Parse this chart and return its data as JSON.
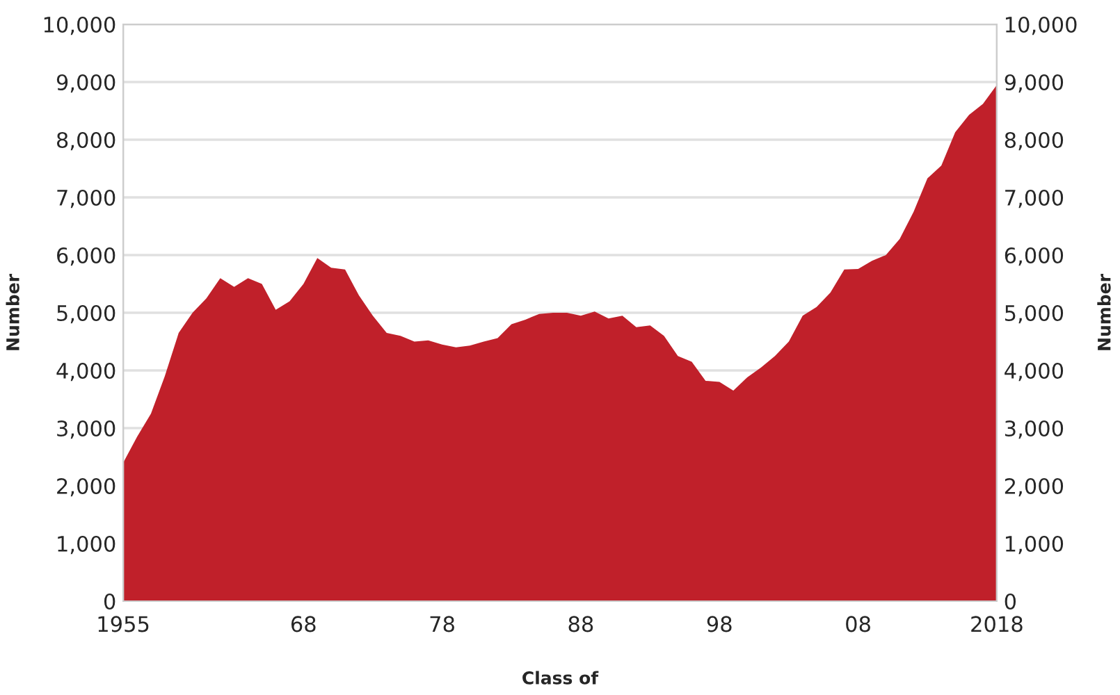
{
  "chart_data": {
    "type": "area",
    "xlabel": "Class of",
    "ylabel": "Number",
    "y2label": "Number",
    "x": [
      1955,
      1956,
      1957,
      1958,
      1959,
      1960,
      1961,
      1962,
      1963,
      1964,
      1965,
      1966,
      1967,
      1968,
      1969,
      1970,
      1971,
      1972,
      1973,
      1974,
      1975,
      1976,
      1977,
      1978,
      1979,
      1980,
      1981,
      1982,
      1983,
      1984,
      1985,
      1986,
      1987,
      1988,
      1989,
      1990,
      1991,
      1992,
      1993,
      1994,
      1995,
      1996,
      1997,
      1998,
      1999,
      2000,
      2001,
      2002,
      2003,
      2004,
      2005,
      2006,
      2007,
      2008,
      2009,
      2010,
      2011,
      2012,
      2013,
      2014,
      2015,
      2016,
      2017,
      2018
    ],
    "series": [
      {
        "color": "#c0202a",
        "values": [
          2400,
          2850,
          3250,
          3900,
          4650,
          5000,
          5250,
          5600,
          5450,
          5600,
          5500,
          5050,
          5200,
          5500,
          5950,
          5780,
          5750,
          5300,
          4950,
          4650,
          4600,
          4500,
          4520,
          4450,
          4400,
          4430,
          4500,
          4560,
          4800,
          4880,
          4980,
          5000,
          5000,
          4950,
          5020,
          4900,
          4950,
          4750,
          4780,
          4600,
          4250,
          4150,
          3820,
          3800,
          3650,
          3880,
          4050,
          4250,
          4500,
          4950,
          5100,
          5350,
          5750,
          5760,
          5900,
          6000,
          6280,
          6750,
          7330,
          7550,
          8130,
          8430,
          8620,
          8950
        ]
      }
    ],
    "xlim": [
      1955,
      2018
    ],
    "xticks": [
      1955,
      {
        "value": 1968,
        "label": "68"
      },
      {
        "value": 1978,
        "label": "78"
      },
      {
        "value": 1988,
        "label": "88"
      },
      {
        "value": 1998,
        "label": "98"
      },
      {
        "value": 2008,
        "label": "08"
      },
      2018
    ],
    "ylim": [
      0,
      10000
    ],
    "yticks": [
      {
        "value": 0,
        "label": "0"
      },
      {
        "value": 1000,
        "label": "1,000"
      },
      {
        "value": 2000,
        "label": "2,000"
      },
      {
        "value": 3000,
        "label": "3,000"
      },
      {
        "value": 4000,
        "label": "4,000"
      },
      {
        "value": 5000,
        "label": "5,000"
      },
      {
        "value": 6000,
        "label": "6,000"
      },
      {
        "value": 7000,
        "label": "7,000"
      },
      {
        "value": 8000,
        "label": "8,000"
      },
      {
        "value": 9000,
        "label": "9,000"
      },
      {
        "value": 10000,
        "label": "10,000"
      }
    ],
    "y2lim": [
      0,
      10000
    ],
    "y2ticks": [
      {
        "value": 0,
        "label": "0"
      },
      {
        "value": 1000,
        "label": "1,000"
      },
      {
        "value": 2000,
        "label": "2,000"
      },
      {
        "value": 3000,
        "label": "3,000"
      },
      {
        "value": 4000,
        "label": "4,000"
      },
      {
        "value": 5000,
        "label": "5,000"
      },
      {
        "value": 6000,
        "label": "6,000"
      },
      {
        "value": 7000,
        "label": "7,000"
      },
      {
        "value": 8000,
        "label": "8,000"
      },
      {
        "value": 9000,
        "label": "9,000"
      },
      {
        "value": 10000,
        "label": "10,000"
      }
    ],
    "grid": "y"
  }
}
